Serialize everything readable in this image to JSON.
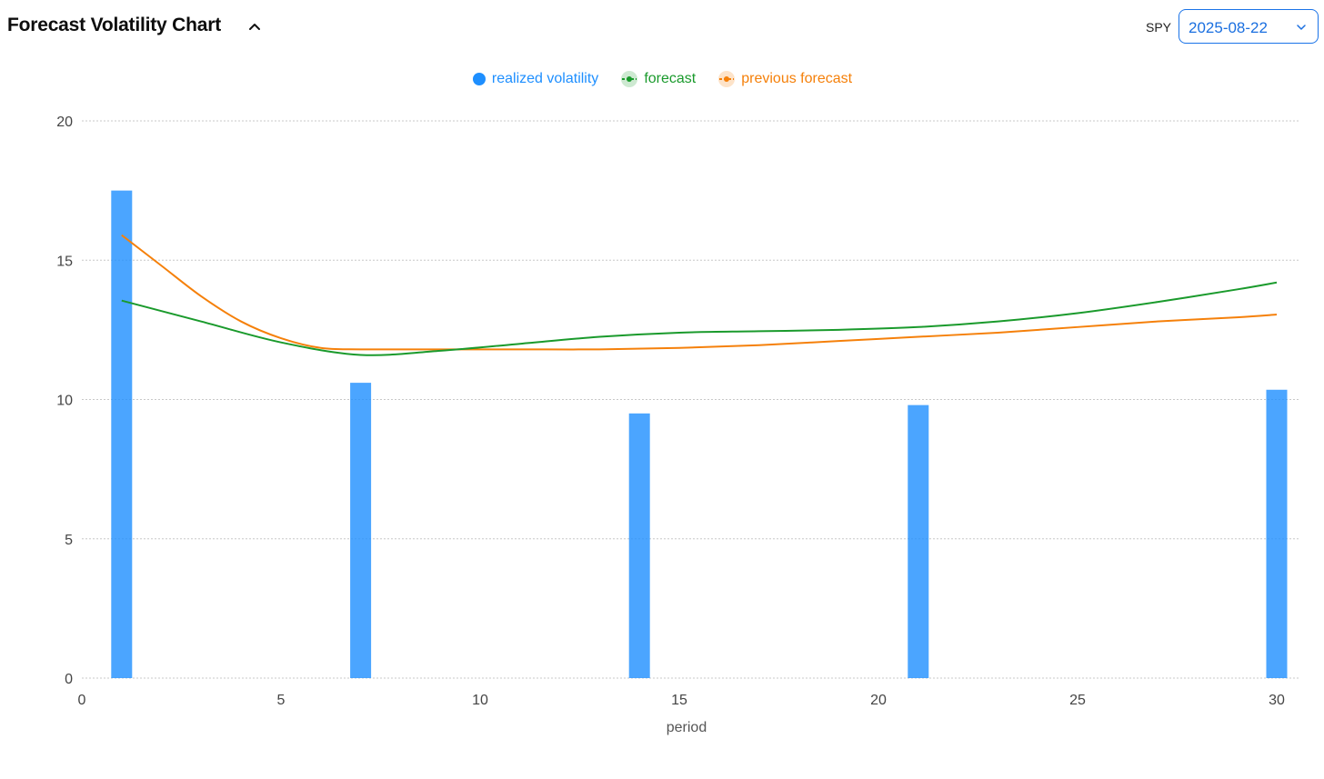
{
  "header": {
    "title": "Forecast Volatility Chart",
    "ticker": "SPY",
    "date_value": "2025-08-22",
    "collapse_icon": "chevron-up-icon",
    "select_icon": "chevron-down-icon"
  },
  "colors": {
    "realized": "#1e8fff",
    "forecast": "#1a9a2c",
    "previous": "#f5800a",
    "accent": "#1a73e8",
    "grid": "#c8c8c8",
    "axis_text": "#444444"
  },
  "legend": [
    {
      "label": "realized volatility",
      "color": "#1e8fff",
      "marker": "filled-circle-icon"
    },
    {
      "label": "forecast",
      "color": "#1a9a2c",
      "marker": "line-dot-icon"
    },
    {
      "label": "previous forecast",
      "color": "#f5800a",
      "marker": "line-dot-icon"
    }
  ],
  "chart_data": {
    "type": "bar",
    "title": "",
    "xlabel": "period",
    "ylabel": "",
    "xlim": [
      0,
      30
    ],
    "ylim": [
      0,
      20
    ],
    "xticks": [
      0,
      5,
      10,
      15,
      20,
      25,
      30
    ],
    "yticks": [
      0,
      5,
      10,
      15,
      20
    ],
    "grid": true,
    "legend_position": "top-center",
    "series": [
      {
        "name": "realized volatility",
        "type": "bar",
        "x": [
          1,
          7,
          14,
          21,
          30
        ],
        "values": [
          17.5,
          10.6,
          9.5,
          9.8,
          10.35
        ]
      },
      {
        "name": "forecast",
        "type": "line",
        "x": [
          1,
          3,
          5,
          7,
          9,
          11,
          13,
          15,
          17,
          19,
          21,
          23,
          25,
          27,
          29,
          30
        ],
        "values": [
          13.55,
          12.8,
          12.05,
          11.6,
          11.75,
          12.0,
          12.25,
          12.4,
          12.45,
          12.5,
          12.6,
          12.8,
          13.1,
          13.5,
          13.95,
          14.2
        ]
      },
      {
        "name": "previous forecast",
        "type": "line",
        "x": [
          1,
          2,
          3,
          4,
          5,
          6,
          7,
          9,
          11,
          13,
          15,
          17,
          19,
          21,
          23,
          25,
          27,
          29,
          30
        ],
        "values": [
          15.9,
          14.8,
          13.7,
          12.8,
          12.2,
          11.85,
          11.8,
          11.8,
          11.8,
          11.8,
          11.85,
          11.95,
          12.1,
          12.25,
          12.4,
          12.6,
          12.8,
          12.95,
          13.05
        ]
      }
    ]
  }
}
